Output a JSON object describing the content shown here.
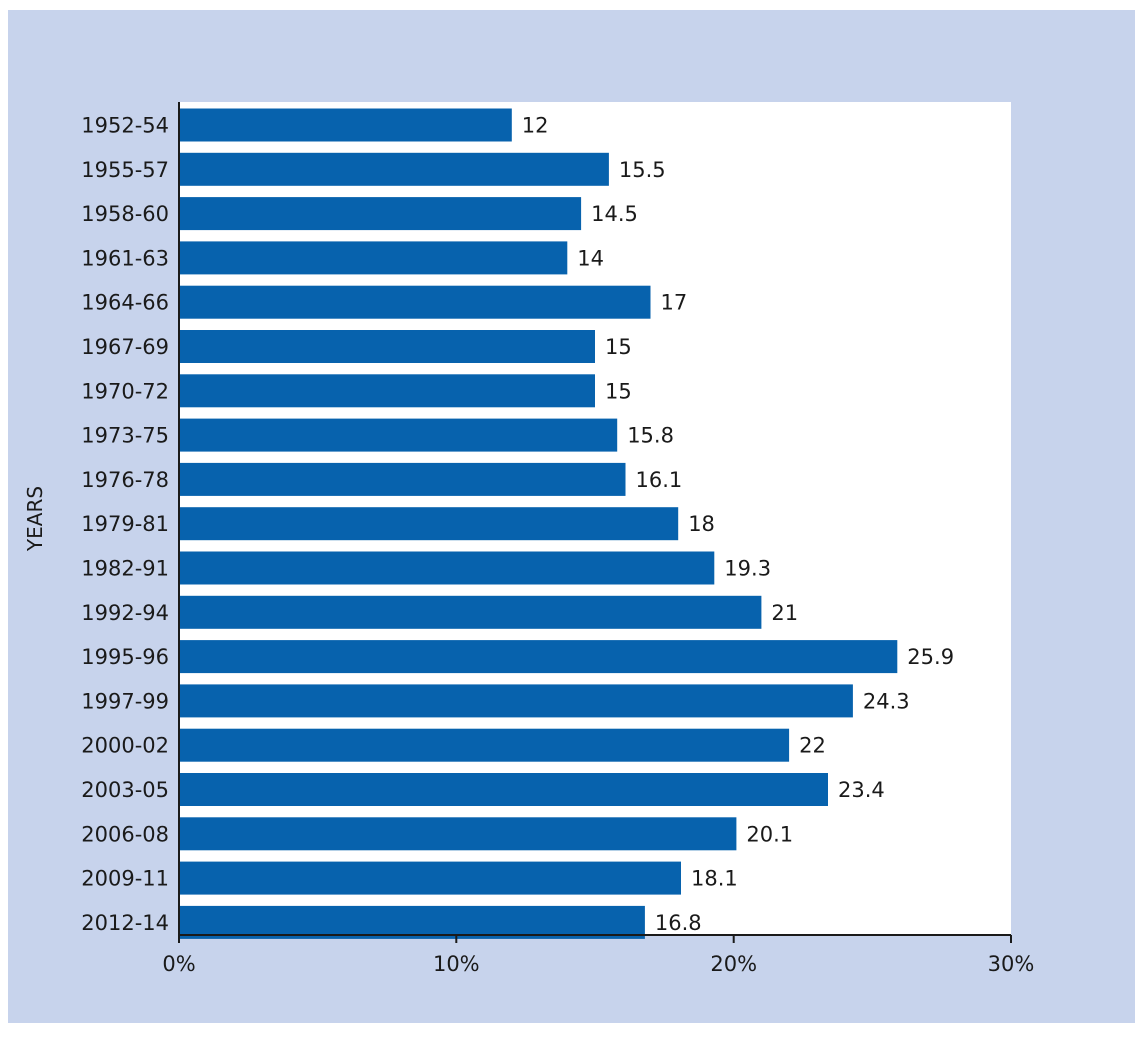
{
  "chart_data": {
    "type": "bar",
    "orientation": "horizontal",
    "categories": [
      "1952-54",
      "1955-57",
      "1958-60",
      "1961-63",
      "1964-66",
      "1967-69",
      "1970-72",
      "1973-75",
      "1976-78",
      "1979-81",
      "1982-91",
      "1992-94",
      "1995-96",
      "1997-99",
      "2000-02",
      "2003-05",
      "2006-08",
      "2009-11",
      "2012-14"
    ],
    "values": [
      12,
      15.5,
      14.5,
      14,
      17,
      15,
      15,
      15.8,
      16.1,
      18,
      19.3,
      21,
      25.9,
      24.3,
      22,
      23.4,
      20.1,
      18.1,
      16.8
    ],
    "value_labels": [
      "12",
      "15.5",
      "14.5",
      "14",
      "17",
      "15",
      "15",
      "15.8",
      "16.1",
      "18",
      "19.3",
      "21",
      "25.9",
      "24.3",
      "22",
      "23.4",
      "20.1",
      "18.1",
      "16.8"
    ],
    "title": "",
    "xlabel": "",
    "ylabel": "YEARS",
    "xlim": [
      0,
      30
    ],
    "x_ticks": [
      0,
      10,
      20,
      30
    ],
    "x_tick_labels": [
      "0%",
      "10%",
      "20%",
      "30%"
    ],
    "grid": false,
    "legend": "none",
    "colors": {
      "bar": "#0762ad",
      "plot_background": "#ffffff",
      "frame_background": "#c7d3ec",
      "axis": "#1a1a1a"
    }
  }
}
